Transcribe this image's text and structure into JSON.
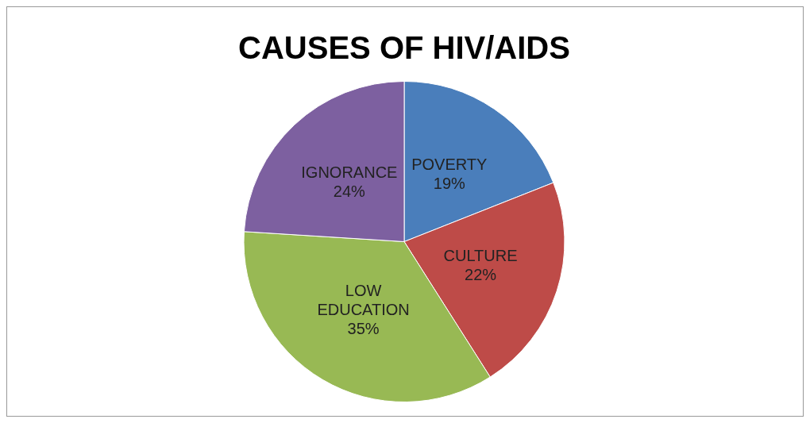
{
  "chart_data": {
    "type": "pie",
    "title": "CAUSES OF HIV/AIDS",
    "categories": [
      "POVERTY",
      "CULTURE",
      "LOW EDUCATION",
      "IGNORANCE"
    ],
    "values": [
      19,
      22,
      35,
      24
    ],
    "value_labels": [
      "19%",
      "22%",
      "35%",
      "24%"
    ],
    "colors": [
      "#4a7ebb",
      "#be4b48",
      "#98b954",
      "#7d60a0"
    ],
    "legend": false
  }
}
